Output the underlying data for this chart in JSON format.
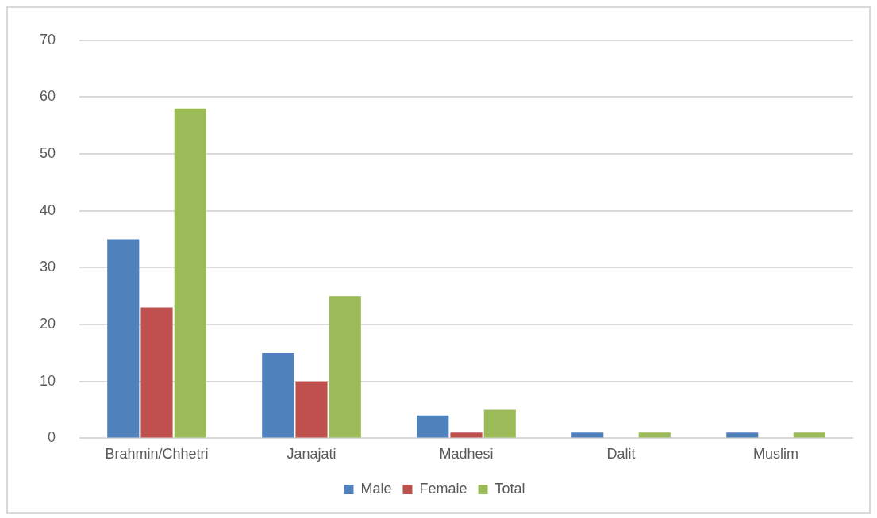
{
  "chart_data": {
    "type": "bar",
    "categories": [
      "Brahmin/Chhetri",
      "Janajati",
      "Madhesi",
      "Dalit",
      "Muslim"
    ],
    "series": [
      {
        "name": "Male",
        "color": "#4f81bd",
        "values": [
          35,
          15,
          4,
          1,
          1
        ]
      },
      {
        "name": "Female",
        "color": "#c0504d",
        "values": [
          23,
          10,
          1,
          0,
          0
        ]
      },
      {
        "name": "Total",
        "color": "#9bbb59",
        "values": [
          58,
          25,
          5,
          1,
          1
        ]
      }
    ],
    "ylim": [
      0,
      70
    ],
    "yticks": [
      0,
      10,
      20,
      30,
      40,
      50,
      60,
      70
    ],
    "grid": "y",
    "legend": "bottom"
  }
}
